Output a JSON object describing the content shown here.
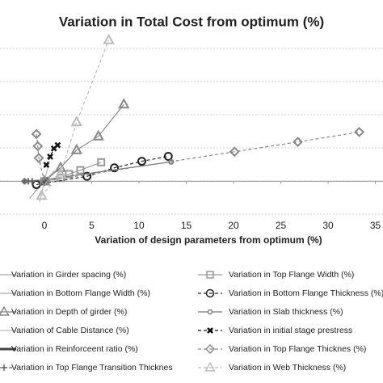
{
  "chart_data": {
    "type": "scatter",
    "title": "Variation in Total Cost from optimum (%)",
    "x_label": "Variation of design parameters from optimum (%)",
    "xlim": [
      -5,
      35
    ],
    "xticks": [
      0,
      5,
      10,
      15,
      20,
      25,
      30,
      35
    ],
    "ylim": [
      -1,
      4.4
    ],
    "grid": true,
    "series": [
      {
        "name": "Variation in Girder spacing (%)",
        "color": "#aaaaaa",
        "marker": "none",
        "dash": "solid",
        "x": [
          -1.5,
          -0.8,
          0,
          0.8,
          1.5
        ],
        "values": [
          -0.5,
          -0.25,
          0,
          0.2,
          0.4
        ]
      },
      {
        "name": "Variation in Top Flange Width (%)",
        "color": "#999999",
        "marker": "square",
        "dash": "solid",
        "x": [
          0,
          1.7,
          2.6,
          3.8,
          6
        ],
        "values": [
          0,
          0.1,
          0.22,
          0.34,
          0.58
        ]
      },
      {
        "name": "Variation in Bottom Flange Width (%)",
        "color": "#aaaaaa",
        "marker": "none",
        "dash": "solid",
        "x": [
          -1,
          0,
          1
        ],
        "values": [
          -0.3,
          0,
          0.3
        ]
      },
      {
        "name": "Variation in Bottom Flange Thickness (%)",
        "color": "#222222",
        "marker": "circle",
        "dash": "dashed",
        "x": [
          -0.85,
          4.5,
          7.4,
          10.3,
          13.1
        ],
        "values": [
          -0.1,
          0.15,
          0.41,
          0.61,
          0.76
        ]
      },
      {
        "name": "Variation in Depth of girder (%)",
        "color": "#888888",
        "marker": "triangle",
        "dash": "solid",
        "x": [
          0,
          1.7,
          3.4,
          5.7,
          8.4
        ],
        "values": [
          0,
          0.41,
          0.95,
          1.37,
          2.34
        ]
      },
      {
        "name": "Variation in Slab thickness (%)",
        "color": "#777777",
        "marker": "dot",
        "dash": "solid",
        "x": [
          -2.1,
          0,
          13.4
        ],
        "values": [
          0,
          0.05,
          0.59
        ]
      },
      {
        "name": "Variation of Cable Distance (%)",
        "color": "#bbbbbb",
        "marker": "none",
        "dash": "solid",
        "x": [
          -0.5,
          0,
          0.5
        ],
        "values": [
          -0.6,
          0,
          0.6
        ]
      },
      {
        "name": "Variation in initial stage prestress",
        "color": "#111111",
        "marker": "cross",
        "dash": "dashed",
        "x": [
          0.2,
          0.6,
          1,
          1.4
        ],
        "values": [
          0.5,
          0.75,
          1.0,
          1.1
        ]
      },
      {
        "name": "Variation in Reinforceent ratio (%)",
        "color": "#444444",
        "marker": "none",
        "dash": "thick",
        "x": [
          -0.3,
          0,
          0.3
        ],
        "values": [
          -0.1,
          0,
          0.1
        ]
      },
      {
        "name": "Variation in Top Flange Thicknes (%)",
        "color": "#888888",
        "marker": "diamond",
        "dash": "dashed",
        "x": [
          -0.85,
          -0.7,
          -0.6,
          0,
          20.1,
          26.8,
          33.3
        ],
        "values": [
          1.44,
          1.07,
          0.71,
          0,
          0.9,
          1.2,
          1.5
        ]
      },
      {
        "name": "Variation in Top Flange Transition Thicknes",
        "color": "#666666",
        "marker": "plus",
        "dash": "dashed",
        "x": [
          -2.1,
          -1.7,
          -1.3
        ],
        "values": [
          0,
          0,
          0
        ]
      },
      {
        "name": "Variation in Web Thickness (%)",
        "color": "#bbbbbb",
        "marker": "triangle",
        "dash": "dashed",
        "x": [
          -0.3,
          1.7,
          3.4,
          6.8
        ],
        "values": [
          -0.44,
          0.22,
          1.8,
          4.3
        ]
      }
    ]
  }
}
